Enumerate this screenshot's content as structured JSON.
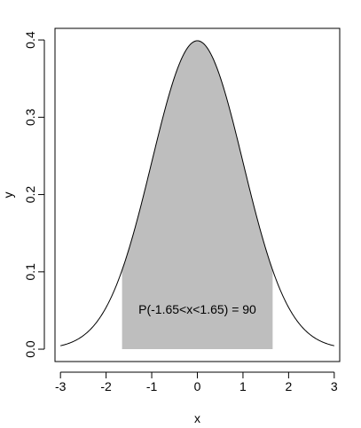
{
  "chart_data": {
    "type": "area",
    "title": "",
    "xlabel": "x",
    "ylabel": "y",
    "xlim": [
      -3.12,
      3.12
    ],
    "ylim": [
      -0.016,
      0.415
    ],
    "x_ticks": [
      -3,
      -2,
      -1,
      0,
      1,
      2,
      3
    ],
    "x_tick_labels": [
      "-3",
      "-2",
      "-1",
      "0",
      "1",
      "2",
      "3"
    ],
    "y_ticks": [
      0.0,
      0.1,
      0.2,
      0.3,
      0.4
    ],
    "y_tick_labels": [
      "0.0",
      "0.1",
      "0.2",
      "0.3",
      "0.4"
    ],
    "grid": false,
    "legend": "none",
    "series": [
      {
        "kind": "normal-density-curve",
        "mean": 0,
        "sd": 1,
        "x_range": [
          -3,
          3
        ],
        "color": "#000000"
      }
    ],
    "shaded_region": {
      "x_from": -1.65,
      "x_to": 1.65,
      "color": "#bebebe"
    },
    "annotation": {
      "text": "P(-1.65<x<1.65) = 90",
      "x": 0,
      "y": 0.05
    }
  }
}
